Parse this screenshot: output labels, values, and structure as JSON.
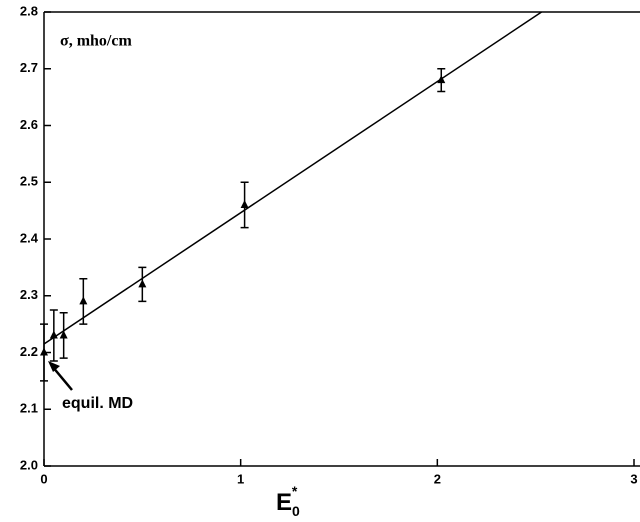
{
  "chart_data": {
    "type": "scatter",
    "ylabel": "σ,  mho/cm",
    "xlabel": {
      "text": "E",
      "subscript": "0",
      "superscript": "*"
    },
    "annotation": "equil.  MD",
    "xlim": [
      0,
      3
    ],
    "ylim": [
      2.0,
      2.8
    ],
    "xticks": [
      0,
      1,
      2,
      3
    ],
    "yticks": [
      {
        "value": 2.0,
        "label": "2.0"
      },
      2.1,
      2.2,
      2.3,
      2.4,
      2.5,
      2.6,
      2.7,
      2.8
    ],
    "series": [
      {
        "color": "#000000",
        "x": [
          0,
          0.05,
          0.1,
          0.2,
          0.5,
          1.02,
          2.02
        ],
        "values": [
          2.2,
          2.23,
          2.23,
          2.29,
          2.32,
          2.46,
          2.68
        ],
        "errors": [
          0.05,
          0.045,
          0.04,
          0.04,
          0.03,
          0.04,
          0.02
        ]
      }
    ],
    "fit": {
      "color": "#000000",
      "x": [
        0,
        2.53
      ],
      "values": [
        2.215,
        2.8
      ]
    }
  }
}
